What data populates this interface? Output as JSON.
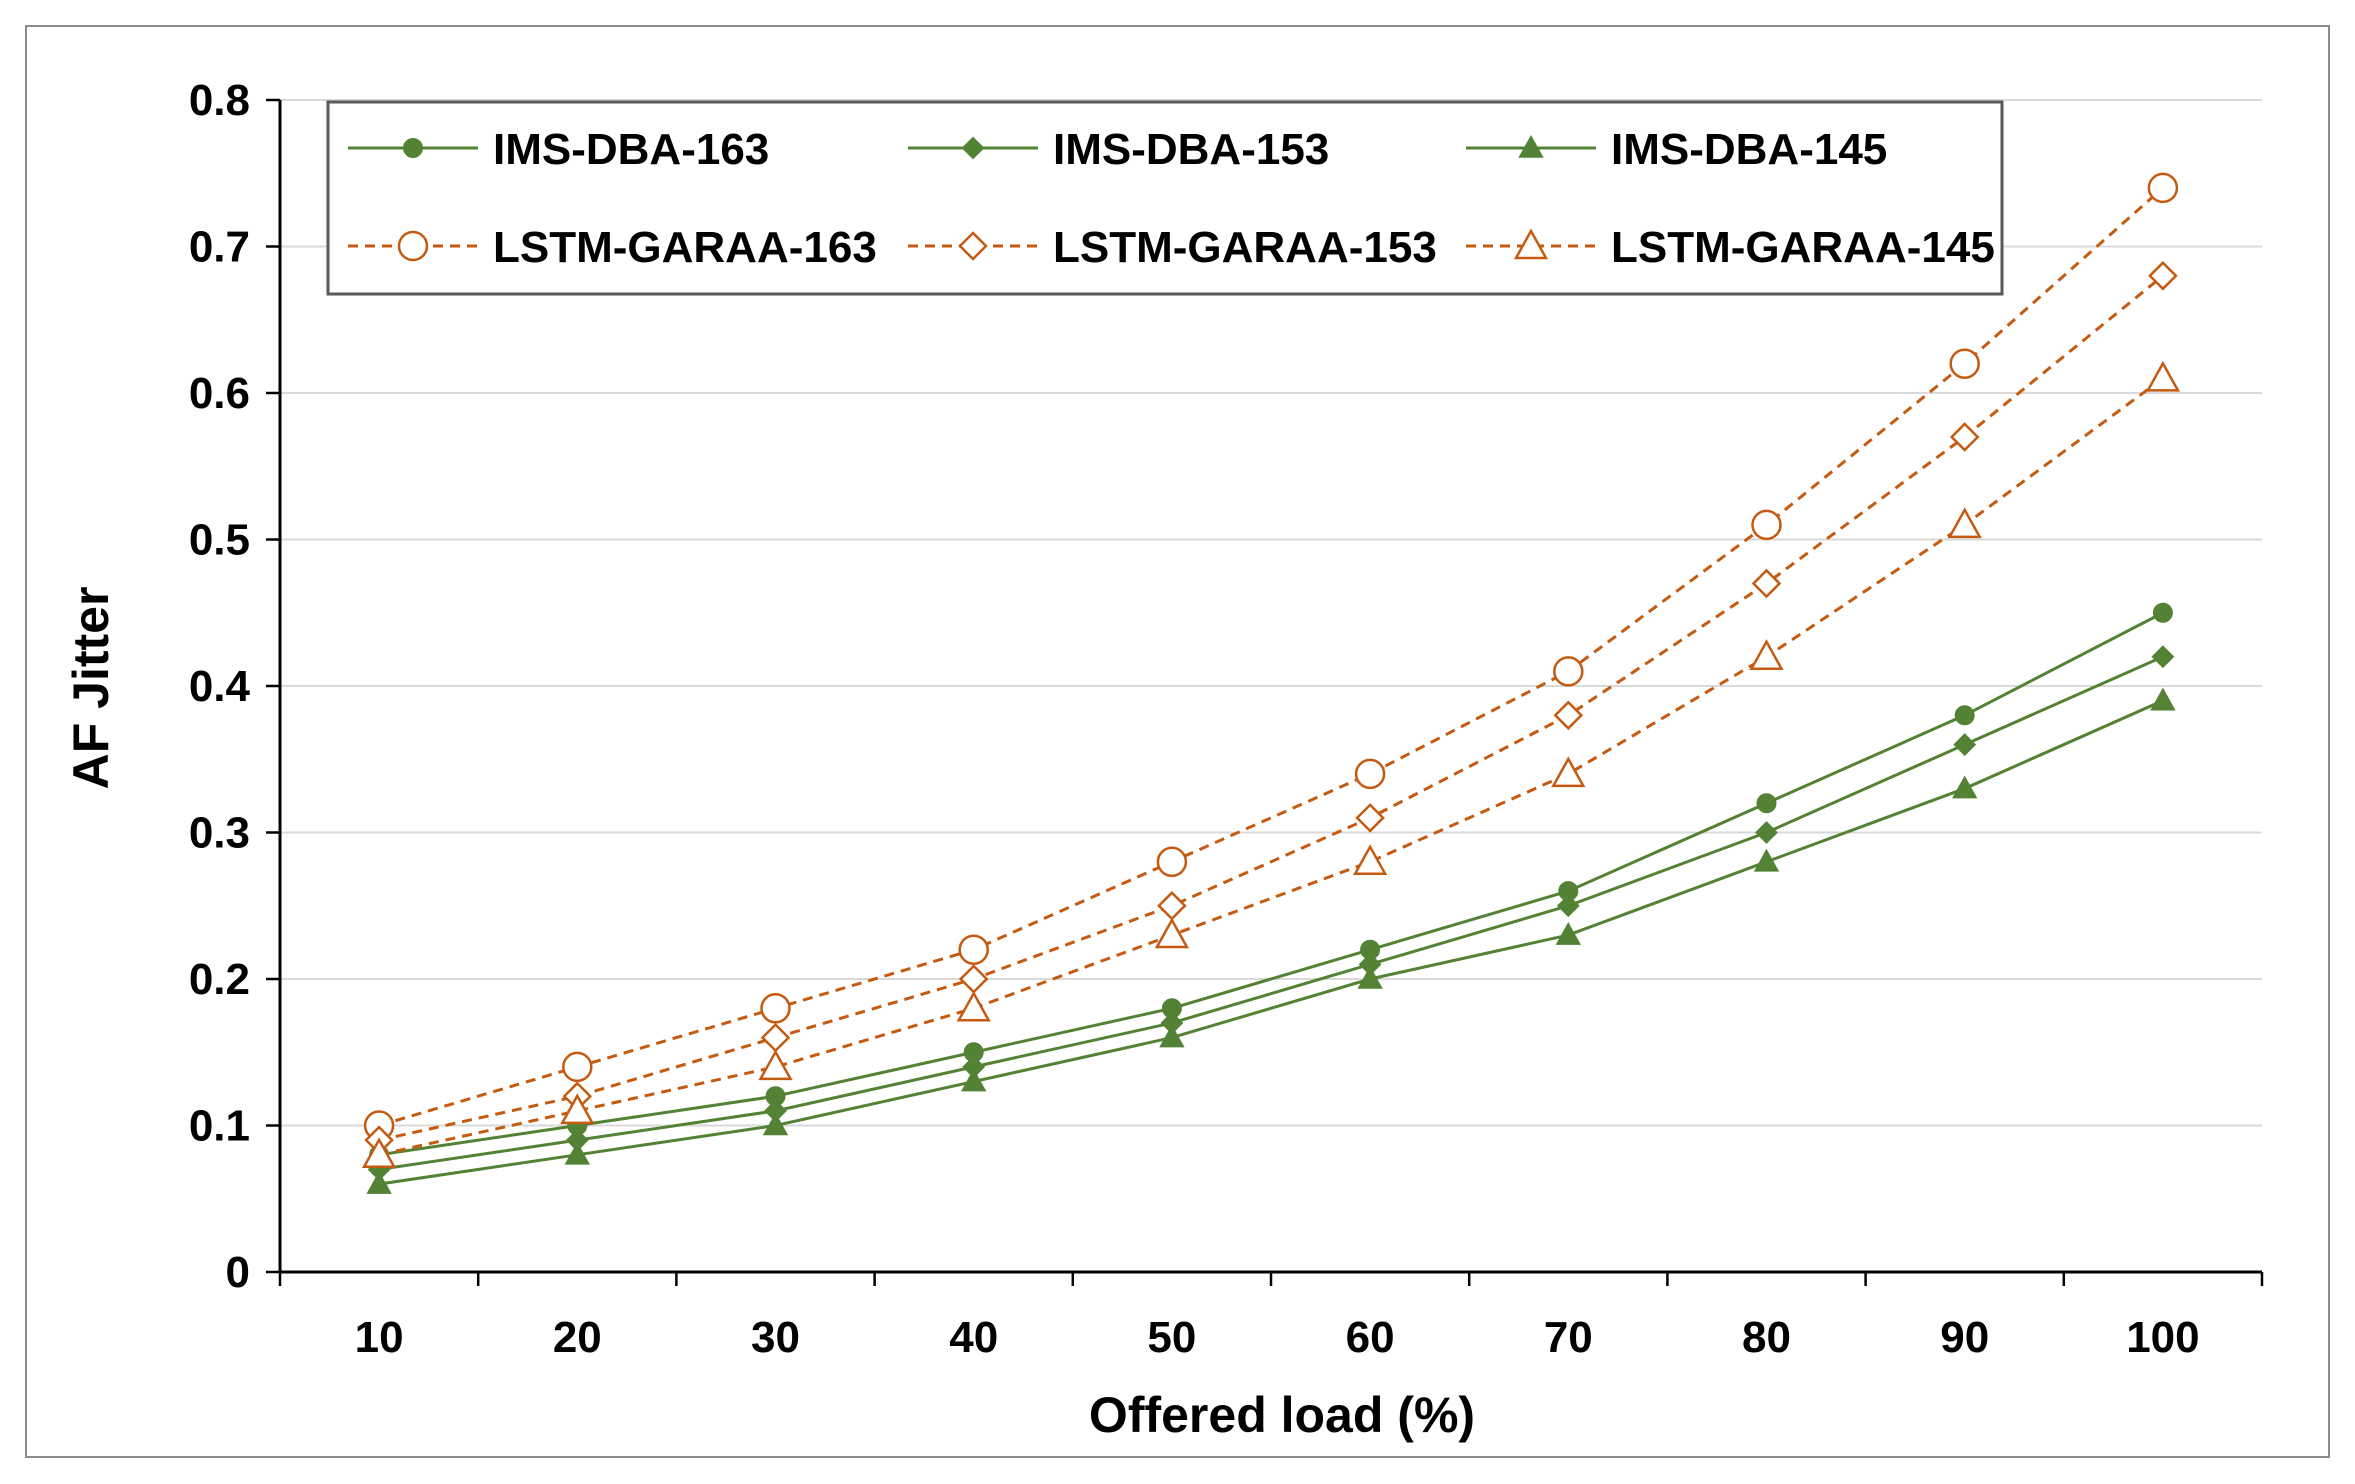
{
  "chart_data": {
    "type": "line",
    "title": "",
    "xlabel": "Offered load (%)",
    "ylabel": "AF Jitter",
    "categories": [
      "10",
      "20",
      "30",
      "40",
      "50",
      "60",
      "70",
      "80",
      "90",
      "100"
    ],
    "ylim": [
      0,
      0.8
    ],
    "yticks": [
      "0",
      "0.1",
      "0.2",
      "0.3",
      "0.4",
      "0.5",
      "0.6",
      "0.7",
      "0.8"
    ],
    "grid": true,
    "legend_position": "top-left, inside plot area, 3 columns",
    "series": [
      {
        "name": "IMS-DBA-163",
        "values": [
          0.08,
          0.1,
          0.12,
          0.15,
          0.18,
          0.22,
          0.26,
          0.32,
          0.38,
          0.45
        ],
        "color": "#548235",
        "dash": false,
        "marker": "circle",
        "filled": true
      },
      {
        "name": "IMS-DBA-153",
        "values": [
          0.07,
          0.09,
          0.11,
          0.14,
          0.17,
          0.21,
          0.25,
          0.3,
          0.36,
          0.42
        ],
        "color": "#548235",
        "dash": false,
        "marker": "diamond",
        "filled": true
      },
      {
        "name": "IMS-DBA-145",
        "values": [
          0.06,
          0.08,
          0.1,
          0.13,
          0.16,
          0.2,
          0.23,
          0.28,
          0.33,
          0.39
        ],
        "color": "#548235",
        "dash": false,
        "marker": "triangle",
        "filled": true
      },
      {
        "name": "LSTM-GARAA-163",
        "values": [
          0.1,
          0.14,
          0.18,
          0.22,
          0.28,
          0.34,
          0.41,
          0.51,
          0.62,
          0.74
        ],
        "color": "#C55A11",
        "dash": true,
        "marker": "circle",
        "filled": false
      },
      {
        "name": "LSTM-GARAA-153",
        "values": [
          0.09,
          0.12,
          0.16,
          0.2,
          0.25,
          0.31,
          0.38,
          0.47,
          0.57,
          0.68
        ],
        "color": "#C55A11",
        "dash": true,
        "marker": "diamond",
        "filled": false
      },
      {
        "name": "LSTM-GARAA-145",
        "values": [
          0.08,
          0.11,
          0.14,
          0.18,
          0.23,
          0.28,
          0.34,
          0.42,
          0.51,
          0.61
        ],
        "color": "#C55A11",
        "dash": true,
        "marker": "triangle",
        "filled": false
      }
    ]
  }
}
